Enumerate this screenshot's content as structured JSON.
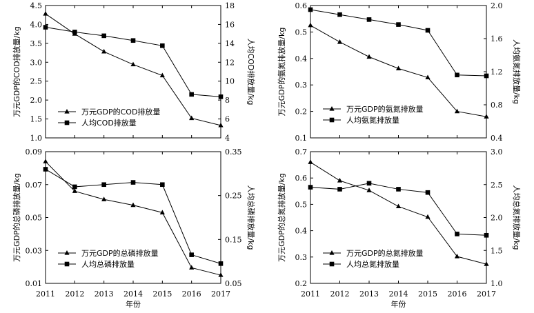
{
  "figure": {
    "xlabel": "年份",
    "x_ticks": [
      "2011",
      "2012",
      "2013",
      "2014",
      "2015",
      "2016",
      "2017"
    ]
  },
  "chart_data": [
    {
      "type": "line",
      "x": [
        2011,
        2012,
        2013,
        2014,
        2015,
        2016,
        2017
      ],
      "ylabel_left": "万元GDP的COD排放量/kg",
      "ylabel_right": "人均COD排放量/kg",
      "ylim_left": [
        1.0,
        4.5
      ],
      "ylim_right": [
        4,
        18
      ],
      "yticks_left": [
        "1.0",
        "1.5",
        "2.0",
        "2.5",
        "3.0",
        "3.5",
        "4.0",
        "4.5"
      ],
      "yticks_right": [
        "4",
        "6",
        "8",
        "10",
        "12",
        "14",
        "16",
        "18"
      ],
      "series": [
        {
          "name": "万元GDP的COD排放量",
          "marker": "triangle",
          "axis": "left",
          "values": [
            4.28,
            3.75,
            3.28,
            2.94,
            2.65,
            1.52,
            1.33
          ]
        },
        {
          "name": "人均COD排放量",
          "marker": "square",
          "axis": "right",
          "values": [
            15.7,
            15.2,
            14.8,
            14.3,
            13.75,
            8.6,
            8.35
          ]
        }
      ],
      "legend": "bottom-left"
    },
    {
      "type": "line",
      "x": [
        2011,
        2012,
        2013,
        2014,
        2015,
        2016,
        2017
      ],
      "ylabel_left": "万元GDP的氨氮排放量/kg",
      "ylabel_right": "人均氨氮排放量/kg",
      "ylim_left": [
        0.1,
        0.6
      ],
      "ylim_right": [
        0.4,
        2.0
      ],
      "yticks_left": [
        "0.1",
        "0.2",
        "0.3",
        "0.4",
        "0.5",
        "0.6"
      ],
      "yticks_right": [
        "0.4",
        "0.8",
        "1.2",
        "1.6",
        "2.0"
      ],
      "series": [
        {
          "name": "万元GDP的氨氮排放量",
          "marker": "triangle",
          "axis": "left",
          "values": [
            0.525,
            0.462,
            0.406,
            0.362,
            0.328,
            0.2,
            0.18
          ]
        },
        {
          "name": "人均氨氮排放量",
          "marker": "square",
          "axis": "right",
          "values": [
            1.95,
            1.89,
            1.83,
            1.77,
            1.7,
            1.16,
            1.15
          ]
        }
      ],
      "legend": "bottom-left"
    },
    {
      "type": "line",
      "x": [
        2011,
        2012,
        2013,
        2014,
        2015,
        2016,
        2017
      ],
      "ylabel_left": "万元GDP的总磷排放量/kg",
      "ylabel_right": "人均总磷排放量/kg",
      "ylim_left": [
        0.01,
        0.09
      ],
      "ylim_right": [
        0.05,
        0.35
      ],
      "yticks_left": [
        "0.01",
        "0.03",
        "0.05",
        "0.07",
        "0.09"
      ],
      "yticks_right": [
        "0.05",
        "0.15",
        "0.25",
        "0.35"
      ],
      "series": [
        {
          "name": "万元GDP的总磷排放量",
          "marker": "triangle",
          "axis": "left",
          "values": [
            0.084,
            0.066,
            0.061,
            0.0575,
            0.053,
            0.0195,
            0.015
          ]
        },
        {
          "name": "人均总磷排放量",
          "marker": "square",
          "axis": "right",
          "values": [
            0.31,
            0.27,
            0.275,
            0.28,
            0.275,
            0.115,
            0.095
          ]
        }
      ],
      "legend": "bottom-left"
    },
    {
      "type": "line",
      "x": [
        2011,
        2012,
        2013,
        2014,
        2015,
        2016,
        2017
      ],
      "ylabel_left": "万元GDP的总氮排放量/kg",
      "ylabel_right": "人均总氮排放量/kg",
      "ylim_left": [
        0.2,
        0.7
      ],
      "ylim_right": [
        1.0,
        3.0
      ],
      "yticks_left": [
        "0.2",
        "0.3",
        "0.4",
        "0.5",
        "0.6",
        "0.7"
      ],
      "yticks_right": [
        "1.0",
        "1.5",
        "2.0",
        "2.5",
        "3.0"
      ],
      "series": [
        {
          "name": "万元GDP的总氮排放量",
          "marker": "triangle",
          "axis": "left",
          "values": [
            0.66,
            0.59,
            0.553,
            0.492,
            0.452,
            0.302,
            0.273
          ]
        },
        {
          "name": "人均总氮排放量",
          "marker": "square",
          "axis": "right",
          "values": [
            2.46,
            2.43,
            2.52,
            2.43,
            2.38,
            1.75,
            1.73
          ]
        }
      ],
      "legend": "bottom-left"
    }
  ]
}
